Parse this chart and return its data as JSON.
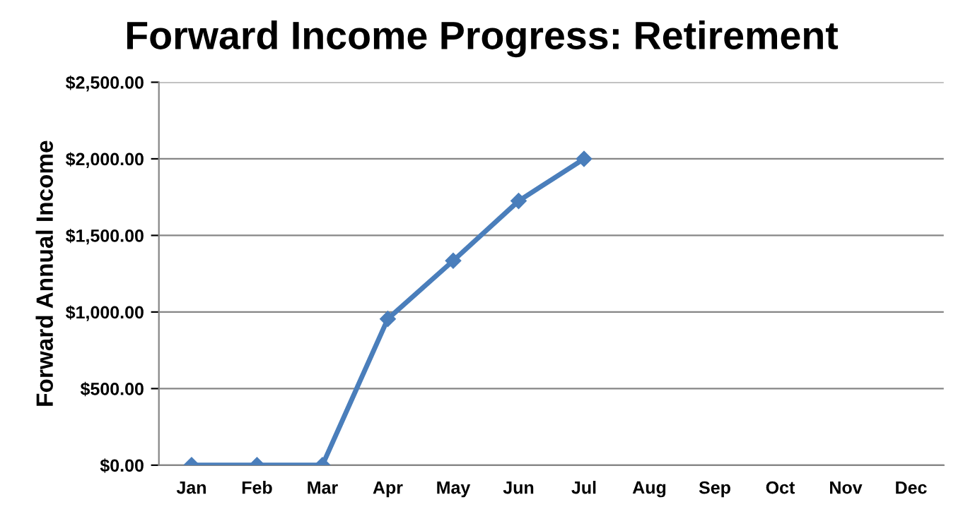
{
  "chart_data": {
    "type": "line",
    "title": "Forward Income Progress: Retirement",
    "ylabel": "Forward Annual Income",
    "categories": [
      "Jan",
      "Feb",
      "Mar",
      "Apr",
      "May",
      "Jun",
      "Jul",
      "Aug",
      "Sep",
      "Oct",
      "Nov",
      "Dec"
    ],
    "series": [
      {
        "color": "#4a7ebb",
        "values": [
          0,
          0,
          0,
          955,
          1335,
          1725,
          2000,
          null,
          null,
          null,
          null,
          null
        ]
      }
    ],
    "ylim": [
      0,
      2500
    ],
    "yticks": [
      {
        "value": 0,
        "label": "$0.00"
      },
      {
        "value": 500,
        "label": "$500.00"
      },
      {
        "value": 1000,
        "label": "$1,000.00"
      },
      {
        "value": 1500,
        "label": "$1,500.00"
      },
      {
        "value": 2000,
        "label": "$2,000.00"
      },
      {
        "value": 2500,
        "label": "$2,500.00"
      }
    ],
    "grid": "y",
    "marker": "diamond",
    "line_style": "solid"
  }
}
